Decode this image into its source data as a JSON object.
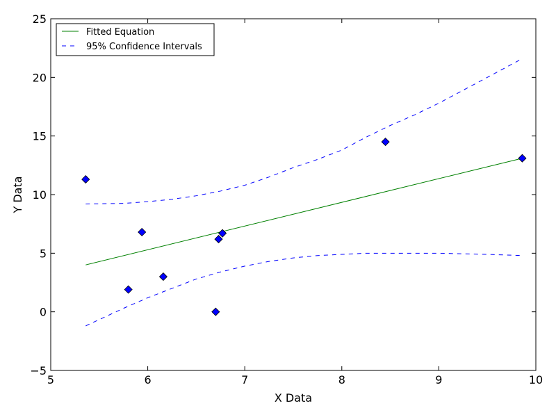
{
  "chart_data": {
    "type": "scatter",
    "title": "",
    "xlabel": "X Data",
    "ylabel": "Y Data",
    "xlim": [
      5,
      10
    ],
    "ylim": [
      -5,
      25
    ],
    "xticks": [
      5,
      6,
      7,
      8,
      9,
      10
    ],
    "yticks": [
      -5,
      0,
      5,
      10,
      15,
      20,
      25
    ],
    "grid": false,
    "legend_position": "top-left",
    "colors": {
      "points": "#0000ff",
      "fit": "#008000",
      "confidence": "#0000ff"
    },
    "points": {
      "x": [
        5.36,
        5.8,
        5.94,
        6.16,
        6.7,
        6.73,
        6.77,
        8.45,
        9.86
      ],
      "y": [
        11.3,
        1.9,
        6.8,
        3.0,
        0.0,
        6.2,
        6.7,
        14.5,
        13.1
      ]
    },
    "series": [
      {
        "name": "Fitted Equation",
        "style": "solid",
        "x": [
          5.36,
          9.86
        ],
        "y": [
          4.0,
          13.1
        ]
      },
      {
        "name": "95% Confidence Intervals",
        "style": "dashed",
        "x": [
          5.36,
          5.75,
          6.0,
          6.25,
          6.5,
          6.75,
          7.0,
          7.25,
          7.5,
          7.75,
          8.0,
          8.25,
          8.5,
          8.75,
          9.0,
          9.25,
          9.5,
          9.86
        ],
        "y": [
          9.2,
          9.25,
          9.4,
          9.6,
          9.9,
          10.3,
          10.8,
          11.5,
          12.3,
          13.0,
          13.8,
          14.9,
          15.9,
          16.8,
          17.8,
          18.9,
          20.0,
          21.6
        ]
      },
      {
        "name": "",
        "style": "dashed",
        "x": [
          5.36,
          5.75,
          6.0,
          6.25,
          6.5,
          6.75,
          7.0,
          7.25,
          7.5,
          7.75,
          8.0,
          8.25,
          8.5,
          8.75,
          9.0,
          9.25,
          9.5,
          9.86
        ],
        "y": [
          -1.2,
          0.3,
          1.2,
          2.0,
          2.8,
          3.4,
          3.9,
          4.3,
          4.6,
          4.8,
          4.9,
          5.0,
          5.0,
          5.0,
          5.0,
          4.95,
          4.9,
          4.8
        ]
      }
    ]
  }
}
